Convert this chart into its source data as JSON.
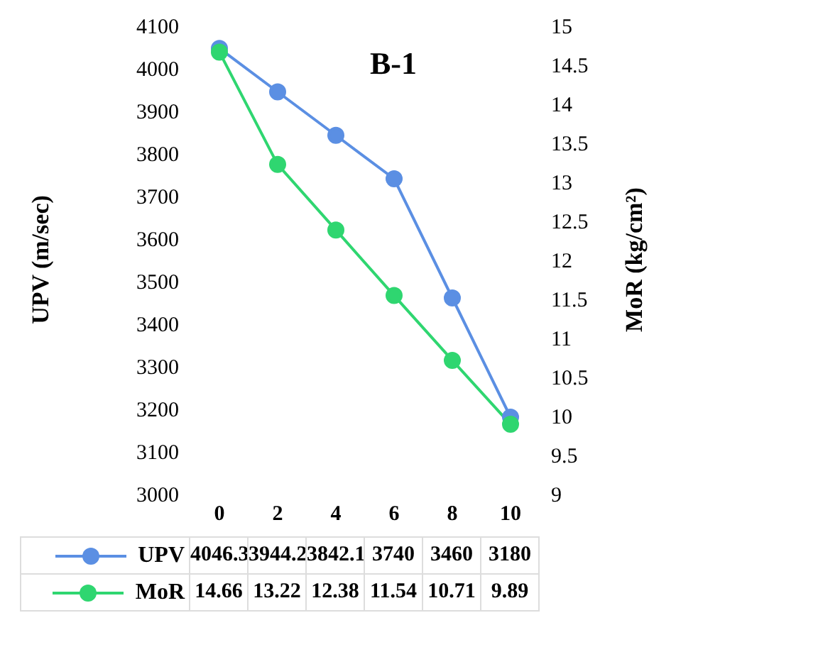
{
  "chart_data": {
    "type": "line",
    "title": "B-1",
    "categories": [
      "0",
      "2",
      "4",
      "6",
      "8",
      "10"
    ],
    "series": [
      {
        "name": "UPV",
        "color": "#5b8fe3",
        "values": [
          4046.3,
          3944.2,
          3842.1,
          3740,
          3460,
          3180
        ],
        "value_labels": [
          "4046.3",
          "3944.2",
          "3842.1",
          "3740",
          "3460",
          "3180"
        ]
      },
      {
        "name": "MoR",
        "color": "#2fd670",
        "values": [
          14.66,
          13.22,
          12.38,
          11.54,
          10.71,
          9.89
        ],
        "axis": "y2",
        "value_labels": [
          "14.66",
          "13.22",
          "12.38",
          "11.54",
          "10.71",
          "9.89"
        ]
      }
    ],
    "ylabel": "UPV (m/sec)",
    "y2label": "MoR (kg/cm²)",
    "ylim": [
      3000,
      4100
    ],
    "yticks": [
      3000,
      3100,
      3200,
      3300,
      3400,
      3500,
      3600,
      3700,
      3800,
      3900,
      4000,
      4100
    ],
    "y2lim": [
      9,
      15
    ],
    "y2ticks": [
      9,
      9.5,
      10,
      10.5,
      11,
      11.5,
      12,
      12.5,
      13,
      13.5,
      14,
      14.5,
      15
    ],
    "marker": "circle",
    "line_style": "solid",
    "grid": false,
    "legend": "bottom"
  }
}
